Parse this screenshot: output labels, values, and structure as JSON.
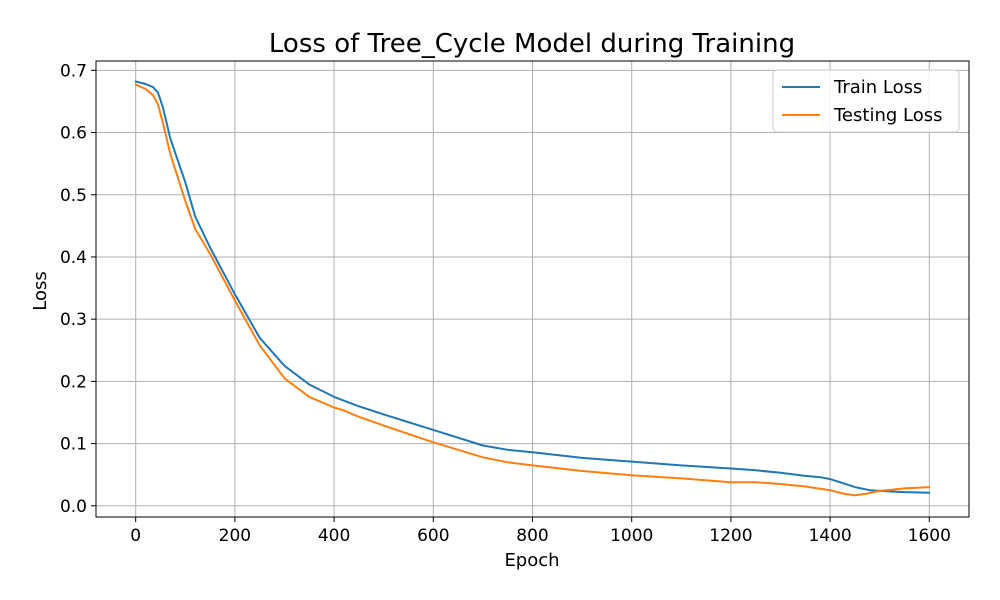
{
  "chart_data": {
    "type": "line",
    "title": "Loss of Tree_Cycle Model during Training",
    "xlabel": "Epoch",
    "ylabel": "Loss",
    "xlim": [
      -80,
      1680
    ],
    "ylim": [
      -0.018,
      0.715
    ],
    "xticks": [
      0,
      200,
      400,
      600,
      800,
      1000,
      1200,
      1400,
      1600
    ],
    "yticks": [
      0.0,
      0.1,
      0.2,
      0.3,
      0.4,
      0.5,
      0.6,
      0.7
    ],
    "xtick_labels": [
      "0",
      "200",
      "400",
      "600",
      "800",
      "1000",
      "1200",
      "1400",
      "1600"
    ],
    "ytick_labels": [
      "0.0",
      "0.1",
      "0.2",
      "0.3",
      "0.4",
      "0.5",
      "0.6",
      "0.7"
    ],
    "grid": true,
    "legend_position": "top-right",
    "series": [
      {
        "name": "Train Loss",
        "color": "#1f77b4",
        "x": [
          0,
          20,
          35,
          45,
          55,
          70,
          100,
          120,
          150,
          200,
          250,
          300,
          350,
          400,
          450,
          500,
          600,
          700,
          750,
          800,
          900,
          1000,
          1100,
          1200,
          1250,
          1300,
          1350,
          1380,
          1400,
          1420,
          1450,
          1480,
          1500,
          1550,
          1600
        ],
        "y": [
          0.682,
          0.678,
          0.673,
          0.664,
          0.64,
          0.59,
          0.52,
          0.465,
          0.415,
          0.34,
          0.27,
          0.225,
          0.195,
          0.175,
          0.16,
          0.147,
          0.122,
          0.097,
          0.09,
          0.086,
          0.077,
          0.071,
          0.065,
          0.06,
          0.057,
          0.053,
          0.048,
          0.046,
          0.043,
          0.038,
          0.03,
          0.025,
          0.024,
          0.022,
          0.021
        ]
      },
      {
        "name": "Testing Loss",
        "color": "#ff7f0e",
        "x": [
          0,
          20,
          35,
          45,
          55,
          70,
          100,
          120,
          150,
          200,
          250,
          300,
          350,
          400,
          420,
          450,
          500,
          600,
          700,
          750,
          800,
          900,
          1000,
          1100,
          1200,
          1250,
          1300,
          1350,
          1400,
          1430,
          1450,
          1470,
          1500,
          1550,
          1600
        ],
        "y": [
          0.677,
          0.67,
          0.66,
          0.645,
          0.615,
          0.565,
          0.49,
          0.445,
          0.405,
          0.33,
          0.258,
          0.205,
          0.175,
          0.158,
          0.153,
          0.143,
          0.129,
          0.102,
          0.078,
          0.07,
          0.065,
          0.056,
          0.049,
          0.044,
          0.038,
          0.038,
          0.035,
          0.031,
          0.025,
          0.019,
          0.017,
          0.019,
          0.024,
          0.028,
          0.03
        ]
      }
    ]
  }
}
